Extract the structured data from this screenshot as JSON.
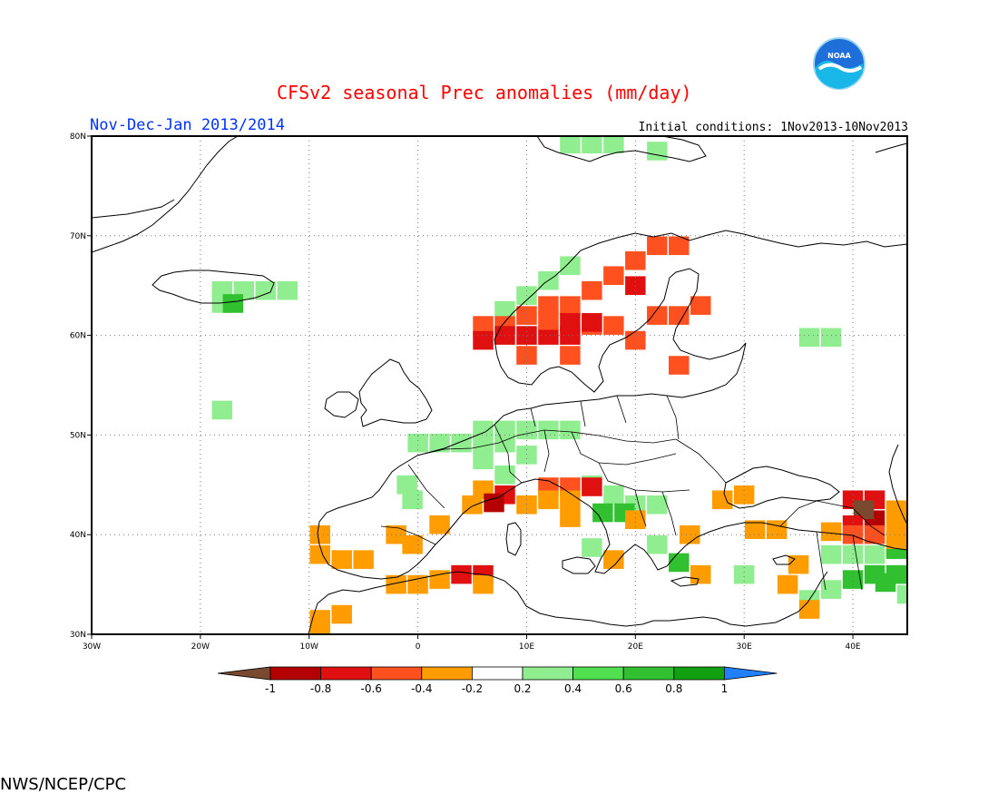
{
  "header": {
    "title": "CFSv2 seasonal Prec anomalies (mm/day)",
    "period": "Nov-Dec-Jan 2013/2014",
    "initial_conditions": "Initial conditions: 1Nov2013-10Nov2013",
    "agency": "NWS/NCEP/CPC",
    "logo_text": "NOAA"
  },
  "map": {
    "lon_range": [
      -30,
      45
    ],
    "lat_range": [
      30,
      80
    ],
    "x_ticks": [
      "30W",
      "20W",
      "10W",
      "0",
      "10E",
      "20E",
      "30E",
      "40E"
    ],
    "y_ticks": [
      "80N",
      "70N",
      "60N",
      "50N",
      "40N",
      "30N"
    ],
    "grid": "dotted every 10 degrees"
  },
  "colorbar": {
    "labels": [
      "-1",
      "-0.8",
      "-0.6",
      "-0.4",
      "-0.2",
      "0.2",
      "0.4",
      "0.6",
      "0.8",
      "1"
    ],
    "colors": [
      "#7a4a30",
      "#b40000",
      "#e01010",
      "#ff5020",
      "#ff9c00",
      "#ffffff",
      "#90ee90",
      "#50e050",
      "#30c030",
      "#10a010",
      "#2080ff"
    ]
  },
  "chart_data": {
    "type": "heatmap",
    "units": "mm/day",
    "cell_size_deg": 1.875,
    "levels": {
      "-5": "< -1",
      "-4": "-1 to -0.8",
      "-3": "-0.8 to -0.6",
      "-2": "-0.6 to -0.4",
      "-1": "-0.4 to -0.2",
      "1": "0.2 to 0.4",
      "2": "0.4 to 0.6",
      "3": "0.6 to 0.8",
      "4": "0.8 to 1"
    },
    "cells": [
      [
        14,
        79.2,
        1
      ],
      [
        16,
        79.2,
        1
      ],
      [
        18,
        79.2,
        1
      ],
      [
        22,
        78.5,
        1
      ],
      [
        -18,
        64.5,
        1
      ],
      [
        -16,
        64.5,
        1
      ],
      [
        -14,
        64.5,
        1
      ],
      [
        -12,
        64.5,
        1
      ],
      [
        -18,
        63.2,
        1
      ],
      [
        -17,
        63.2,
        3
      ],
      [
        8,
        62.5,
        1
      ],
      [
        10,
        64,
        1
      ],
      [
        12,
        65.5,
        1
      ],
      [
        14,
        67,
        1
      ],
      [
        6,
        61,
        -2
      ],
      [
        8,
        61,
        -2
      ],
      [
        8,
        60,
        -3
      ],
      [
        6,
        59.5,
        -3
      ],
      [
        10,
        60,
        -3
      ],
      [
        12,
        60,
        -3
      ],
      [
        10,
        62,
        -2
      ],
      [
        12,
        61.5,
        -2
      ],
      [
        12,
        63,
        -2
      ],
      [
        14,
        63,
        -2
      ],
      [
        16,
        64.5,
        -2
      ],
      [
        18,
        66,
        -2
      ],
      [
        20,
        67.5,
        -2
      ],
      [
        22,
        69,
        -2
      ],
      [
        24,
        69,
        -2
      ],
      [
        16,
        61,
        -2
      ],
      [
        14,
        58,
        -2
      ],
      [
        10,
        58,
        -2
      ],
      [
        18,
        61,
        -2
      ],
      [
        20,
        59.5,
        -2
      ],
      [
        14,
        61.3,
        -3
      ],
      [
        16,
        61.3,
        -3
      ],
      [
        14,
        60,
        -3
      ],
      [
        20,
        65,
        -3
      ],
      [
        26,
        63,
        -2
      ],
      [
        24,
        62,
        -2
      ],
      [
        22,
        62,
        -2
      ],
      [
        24,
        57,
        -2
      ],
      [
        36,
        59.8,
        1
      ],
      [
        38,
        59.8,
        1
      ],
      [
        -18,
        52.5,
        1
      ],
      [
        0,
        49.2,
        1
      ],
      [
        2,
        49.2,
        1
      ],
      [
        4,
        49.2,
        1
      ],
      [
        6,
        49.2,
        1
      ],
      [
        6,
        50.5,
        1
      ],
      [
        8,
        50.5,
        1
      ],
      [
        10,
        50.5,
        1
      ],
      [
        12,
        50.5,
        1
      ],
      [
        14,
        50.5,
        1
      ],
      [
        8,
        49.2,
        1
      ],
      [
        10,
        48,
        1
      ],
      [
        6,
        47.5,
        1
      ],
      [
        8,
        46,
        1
      ],
      [
        -1,
        45,
        1
      ],
      [
        -0.5,
        43.5,
        1
      ],
      [
        16,
        45,
        1
      ],
      [
        18,
        44,
        1
      ],
      [
        20,
        43,
        1
      ],
      [
        22,
        43,
        1
      ],
      [
        17,
        42.2,
        3
      ],
      [
        19,
        42.2,
        3
      ],
      [
        16,
        38.7,
        1
      ],
      [
        22,
        39,
        1
      ],
      [
        24,
        37.2,
        3
      ],
      [
        30,
        36,
        1
      ],
      [
        38,
        38,
        1
      ],
      [
        40,
        38,
        1
      ],
      [
        42,
        38,
        1
      ],
      [
        42,
        36,
        3
      ],
      [
        44,
        36,
        3
      ],
      [
        36,
        33.5,
        1
      ],
      [
        38,
        34.5,
        1
      ],
      [
        40,
        35.5,
        3
      ],
      [
        43,
        35.2,
        3
      ],
      [
        45,
        34,
        1
      ],
      [
        44,
        38.5,
        3
      ],
      [
        6,
        44.5,
        -1
      ],
      [
        8,
        44,
        -3
      ],
      [
        7,
        43.2,
        -4
      ],
      [
        5,
        43,
        -1
      ],
      [
        10,
        43,
        -1
      ],
      [
        12,
        44.8,
        -2
      ],
      [
        14,
        44.8,
        -2
      ],
      [
        16,
        44.8,
        -3
      ],
      [
        14,
        43.5,
        -1
      ],
      [
        12,
        43.5,
        -1
      ],
      [
        2,
        41,
        -1
      ],
      [
        -2,
        40,
        -1
      ],
      [
        -0.5,
        39,
        -1
      ],
      [
        -9,
        40,
        -1
      ],
      [
        -9,
        38,
        -1
      ],
      [
        -7,
        37.5,
        -1
      ],
      [
        -5,
        37.5,
        -1
      ],
      [
        -2,
        35,
        -1
      ],
      [
        0,
        35,
        -1
      ],
      [
        2,
        35.5,
        -1
      ],
      [
        4,
        36,
        -3
      ],
      [
        6,
        36,
        -3
      ],
      [
        6,
        35,
        -1
      ],
      [
        -7,
        32,
        -1
      ],
      [
        -9,
        31.5,
        -1
      ],
      [
        -9,
        30.5,
        -1
      ],
      [
        14,
        41.7,
        -1
      ],
      [
        20,
        41.5,
        -1
      ],
      [
        25,
        40,
        -1
      ],
      [
        28,
        43.5,
        -1
      ],
      [
        30,
        44,
        -1
      ],
      [
        33,
        40.5,
        -1
      ],
      [
        31,
        40.5,
        -1
      ],
      [
        35,
        37,
        -1
      ],
      [
        38,
        40.3,
        -1
      ],
      [
        36,
        32.5,
        -1
      ],
      [
        34,
        35,
        -1
      ],
      [
        26,
        36,
        -1
      ],
      [
        18,
        37.5,
        -1
      ],
      [
        40,
        43.5,
        -3
      ],
      [
        42,
        43.5,
        -3
      ],
      [
        42,
        41.5,
        -4
      ],
      [
        41,
        42.5,
        -5
      ],
      [
        44,
        42.5,
        -1
      ],
      [
        44,
        41,
        -1
      ],
      [
        40,
        41,
        -3
      ],
      [
        42,
        40,
        -2
      ],
      [
        44,
        39.5,
        -1
      ],
      [
        40,
        40,
        -2
      ]
    ]
  }
}
